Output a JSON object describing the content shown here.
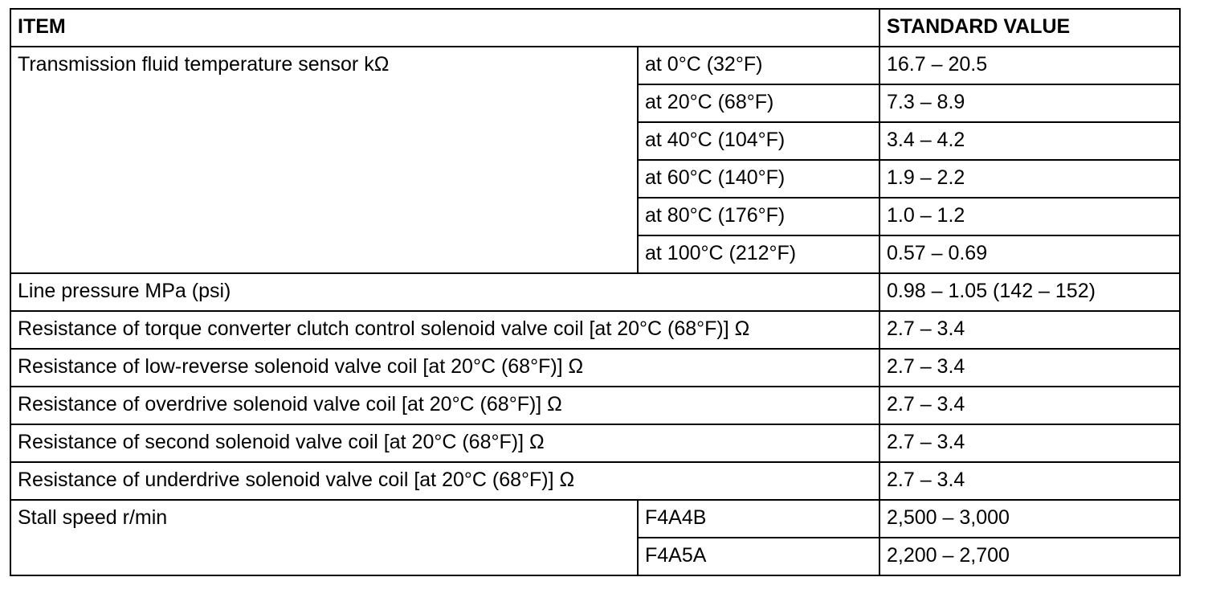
{
  "table": {
    "header": {
      "item": "ITEM",
      "standard_value": "STANDARD VALUE"
    },
    "rows": [
      {
        "item": "Transmission fluid temperature sensor kΩ",
        "conditions": [
          {
            "condition": "at 0°C (32°F)",
            "value": "16.7 – 20.5"
          },
          {
            "condition": "at 20°C (68°F)",
            "value": "7.3 – 8.9"
          },
          {
            "condition": "at 40°C (104°F)",
            "value": "3.4 – 4.2"
          },
          {
            "condition": "at 60°C (140°F)",
            "value": "1.9 – 2.2"
          },
          {
            "condition": "at 80°C (176°F)",
            "value": "1.0 – 1.2"
          },
          {
            "condition": "at 100°C (212°F)",
            "value": "0.57 – 0.69"
          }
        ]
      },
      {
        "item": "Line pressure MPa (psi)",
        "value": "0.98 – 1.05 (142 – 152)"
      },
      {
        "item": "Resistance of torque converter clutch control solenoid valve coil [at 20°C (68°F)] Ω",
        "value": "2.7 – 3.4"
      },
      {
        "item": "Resistance of low-reverse solenoid valve coil [at 20°C (68°F)] Ω",
        "value": "2.7 – 3.4"
      },
      {
        "item": "Resistance of overdrive solenoid valve coil [at 20°C (68°F)] Ω",
        "value": "2.7 – 3.4"
      },
      {
        "item": "Resistance of second solenoid valve coil [at 20°C (68°F)] Ω",
        "value": "2.7 – 3.4"
      },
      {
        "item": "Resistance of underdrive solenoid valve coil [at 20°C (68°F)] Ω",
        "value": "2.7 – 3.4"
      },
      {
        "item": "Stall speed r/min",
        "conditions": [
          {
            "condition": "F4A4B",
            "value": "2,500 – 3,000"
          },
          {
            "condition": "F4A5A",
            "value": "2,200 – 2,700"
          }
        ]
      }
    ]
  }
}
